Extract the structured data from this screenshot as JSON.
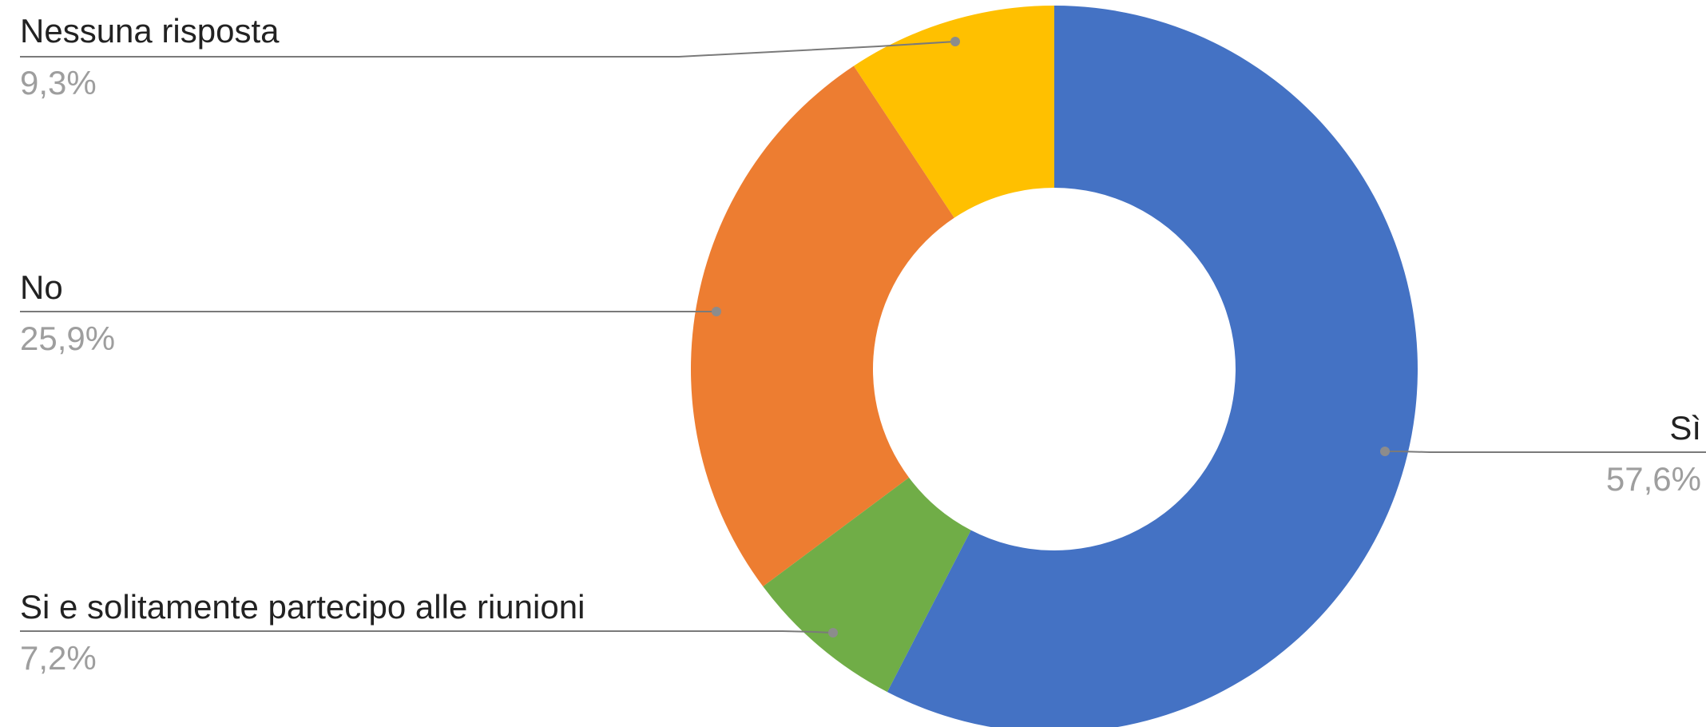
{
  "chart_data": {
    "type": "pie",
    "donut": true,
    "title": "",
    "slices": [
      {
        "label": "Sì",
        "value": 57.6,
        "value_label": "57,6%",
        "color": "#4472C4"
      },
      {
        "label": "Si e solitamente partecipo alle riunioni",
        "value": 7.2,
        "value_label": "7,2%",
        "color": "#70AD47"
      },
      {
        "label": "No",
        "value": 25.9,
        "value_label": "25,9%",
        "color": "#ED7D31"
      },
      {
        "label": "Nessuna risposta",
        "value": 9.3,
        "value_label": "9,3%",
        "color": "#FFC000"
      }
    ],
    "legend": "none",
    "labels": "outside-with-leader-lines"
  }
}
